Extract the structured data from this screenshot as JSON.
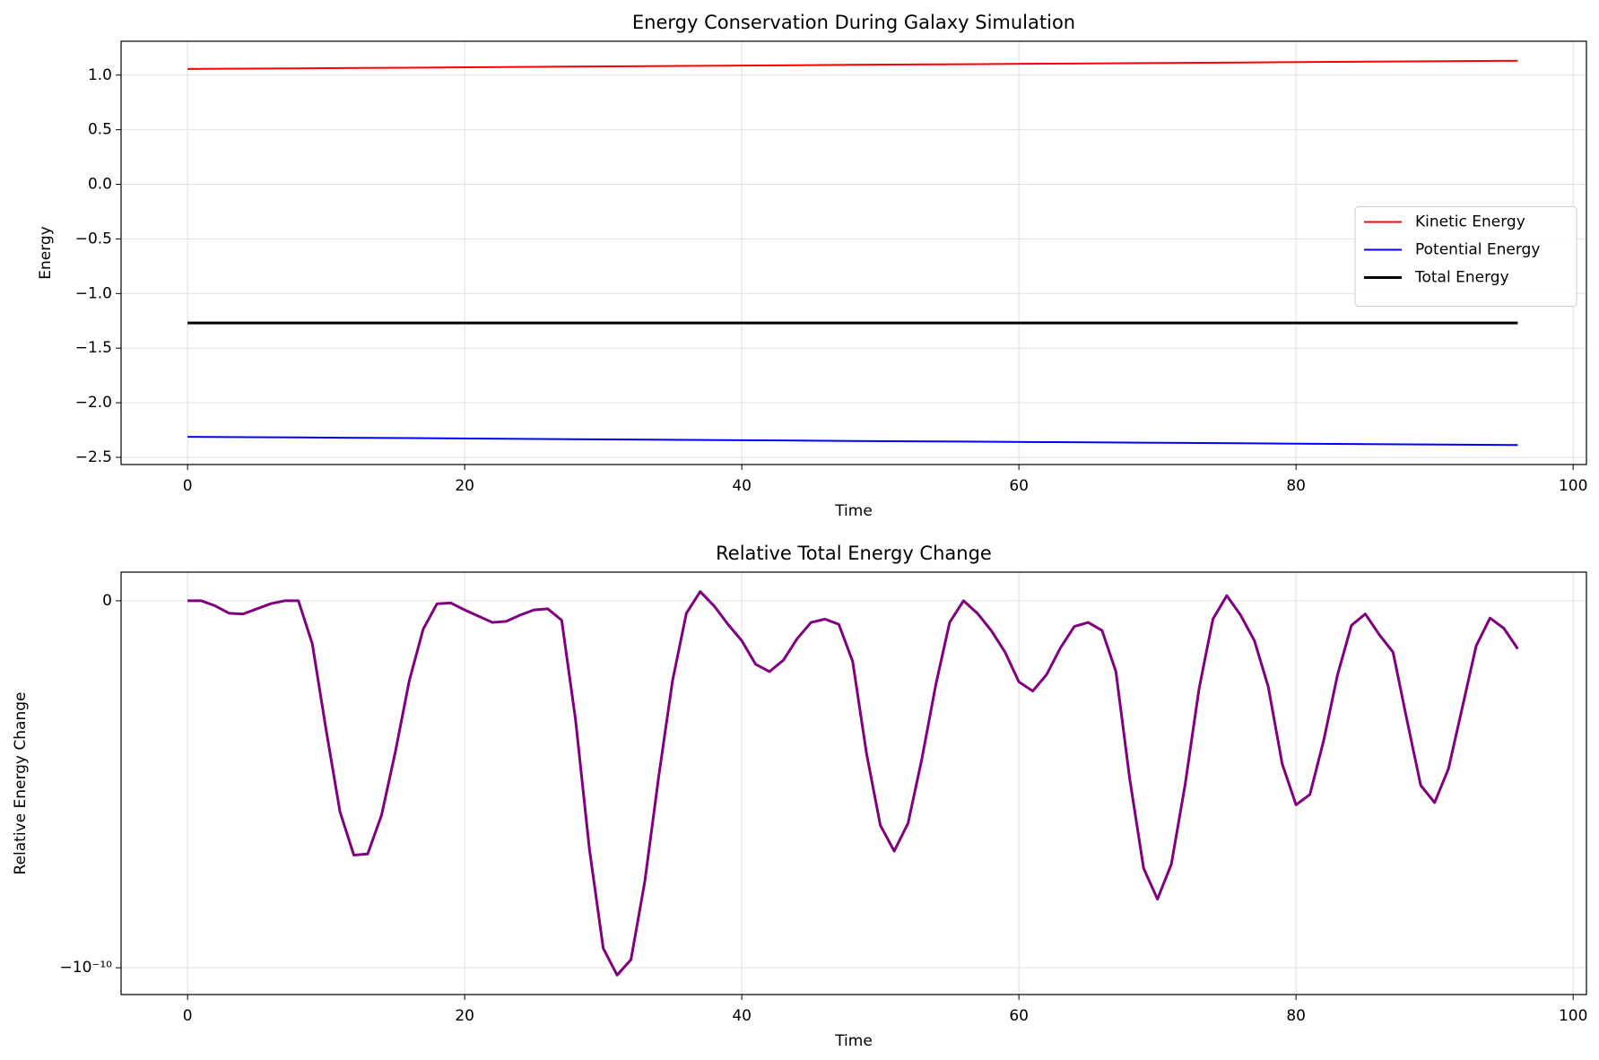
{
  "chart_data": [
    {
      "type": "line",
      "title": "Energy Conservation During Galaxy Simulation",
      "x_label": "Time",
      "y_label": "Energy",
      "x": [
        0,
        8,
        16,
        24,
        32,
        40,
        48,
        56,
        64,
        72,
        80,
        88,
        96
      ],
      "series": [
        {
          "name": "Kinetic Energy",
          "color": "#ff0000",
          "line_width": 2,
          "values": [
            1.056,
            1.062,
            1.068,
            1.075,
            1.081,
            1.087,
            1.094,
            1.1,
            1.106,
            1.112,
            1.119,
            1.125,
            1.131
          ]
        },
        {
          "name": "Potential Energy",
          "color": "#0000ff",
          "line_width": 2,
          "values": [
            -2.312,
            -2.318,
            -2.324,
            -2.331,
            -2.337,
            -2.343,
            -2.35,
            -2.356,
            -2.362,
            -2.368,
            -2.375,
            -2.381,
            -2.387
          ]
        },
        {
          "name": "Total Energy",
          "color": "#000000",
          "line_width": 3,
          "values": [
            -1.27,
            -1.27,
            -1.27,
            -1.27,
            -1.27,
            -1.27,
            -1.27,
            -1.27,
            -1.27,
            -1.27,
            -1.27,
            -1.27,
            -1.27
          ]
        }
      ],
      "xlim": [
        -4.8,
        100.96
      ],
      "xticks": [
        0,
        20,
        40,
        60,
        80,
        100
      ],
      "ylim": [
        -2.566,
        1.31
      ],
      "yticks": [
        {
          "value": -2.5,
          "label": "−2.5"
        },
        {
          "value": -2.0,
          "label": "−2.0"
        },
        {
          "value": -1.5,
          "label": "−1.5"
        },
        {
          "value": -1.0,
          "label": "−1.0"
        },
        {
          "value": -0.5,
          "label": "−0.5"
        },
        {
          "value": 0,
          "label": "0.0"
        },
        0.5,
        {
          "value": 1.0,
          "label": "1.0"
        }
      ],
      "grid": true,
      "legend": "center right"
    },
    {
      "type": "line",
      "title": "Relative Total Energy Change",
      "x_label": "Time",
      "y_label": "Relative Energy Change",
      "x": [
        0,
        1,
        2,
        3,
        4,
        5,
        6,
        7,
        8,
        9,
        10,
        11,
        12,
        13,
        14,
        15,
        16,
        17,
        18,
        19,
        20,
        21,
        22,
        23,
        24,
        25,
        26,
        27,
        28,
        29,
        30,
        31,
        32,
        33,
        34,
        35,
        36,
        37,
        38,
        39,
        40,
        41,
        42,
        43,
        44,
        45,
        46,
        47,
        48,
        49,
        50,
        51,
        52,
        53,
        54,
        55,
        56,
        57,
        58,
        59,
        60,
        61,
        62,
        63,
        64,
        65,
        66,
        67,
        68,
        69,
        70,
        71,
        72,
        73,
        74,
        75,
        76,
        77,
        78,
        79,
        80,
        81,
        82,
        83,
        84,
        85,
        86,
        87,
        88,
        89,
        90,
        91,
        92,
        93,
        94,
        95,
        96
      ],
      "series": [
        {
          "name": "Relative Energy Change",
          "color": "#800080",
          "line_width": 3,
          "values": [
            0,
            0,
            -1.4e-12,
            -3.4e-12,
            -3.6e-12,
            -2.2e-12,
            -8e-13,
            0,
            0,
            -1.17e-11,
            -3.52e-11,
            -5.75e-11,
            -6.93e-11,
            -6.9e-11,
            -5.84e-11,
            -4.11e-11,
            -2.18e-11,
            -7.8e-12,
            -8e-13,
            -6e-13,
            -2.5e-12,
            -4.2e-12,
            -5.9e-12,
            -5.6e-12,
            -3.9e-12,
            -2.5e-12,
            -2.2e-12,
            -5.3e-12,
            -3.24e-11,
            -6.76e-11,
            -9.47e-11,
            -1.02e-10,
            -9.78e-11,
            -7.65e-11,
            -4.8e-11,
            -2.18e-11,
            -3.4e-12,
            2.5e-12,
            -1.4e-12,
            -6.4e-12,
            -1.09e-11,
            -1.73e-11,
            -1.93e-11,
            -1.62e-11,
            -1.03e-11,
            -5.9e-12,
            -5e-12,
            -6.4e-12,
            -1.65e-11,
            -4.16e-11,
            -6.12e-11,
            -6.82e-11,
            -6.06e-11,
            -4.3e-11,
            -2.29e-11,
            -5.9e-12,
            0,
            -3.4e-12,
            -8.1e-12,
            -1.4e-11,
            -2.21e-11,
            -2.46e-11,
            -2.01e-11,
            -1.28e-11,
            -7e-12,
            -5.9e-12,
            -8.1e-12,
            -1.93e-11,
            -4.86e-11,
            -7.29e-11,
            -8.13e-11,
            -7.18e-11,
            -5e-11,
            -2.4e-11,
            -5e-12,
            1.4e-12,
            -3.9e-12,
            -1.09e-11,
            -2.35e-11,
            -4.44e-11,
            -5.56e-11,
            -5.28e-11,
            -3.8e-11,
            -2.01e-11,
            -6.7e-12,
            -3.6e-12,
            -9.2e-12,
            -1.4e-11,
            -3.24e-11,
            -5.03e-11,
            -5.5e-11,
            -4.58e-11,
            -2.91e-11,
            -1.23e-11,
            -4.7e-12,
            -7.5e-12,
            -1.31e-11
          ]
        }
      ],
      "xlim": [
        -4.8,
        100.96
      ],
      "xticks": [
        0,
        20,
        40,
        60,
        80,
        100
      ],
      "ylim": [
        -1.073e-10,
        7.8e-12
      ],
      "yticks": [
        {
          "value": -1e-10,
          "label": "−10⁻¹⁰"
        },
        0
      ],
      "grid": true
    }
  ]
}
